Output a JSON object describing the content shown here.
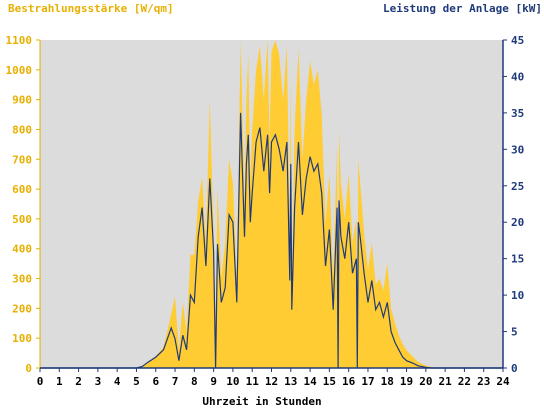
{
  "chart_data": {
    "type": "area",
    "left_title": "Bestrahlungsstärke [W/qm]",
    "right_title": "Leistung der Anlage [kW]",
    "xlabel": "Uhrzeit in Stunden",
    "xlim": [
      0,
      24
    ],
    "ylim_left": [
      0,
      1100
    ],
    "ylim_right": [
      0,
      45
    ],
    "x_ticks": [
      0,
      1,
      2,
      3,
      4,
      5,
      6,
      7,
      8,
      9,
      10,
      11,
      12,
      13,
      14,
      15,
      16,
      17,
      18,
      19,
      20,
      21,
      22,
      23,
      24
    ],
    "y_ticks_left": [
      0,
      100,
      200,
      300,
      400,
      500,
      600,
      700,
      800,
      900,
      1000,
      1100
    ],
    "y_ticks_right": [
      0,
      5,
      10,
      15,
      20,
      25,
      30,
      35,
      40,
      45
    ],
    "series": [
      {
        "name": "Bestrahlungsstärke [W/qm]",
        "axis": "left",
        "x": [
          0,
          5.0,
          5.3,
          5.6,
          6.0,
          6.4,
          6.8,
          7.0,
          7.2,
          7.4,
          7.6,
          7.8,
          8.0,
          8.2,
          8.4,
          8.6,
          8.8,
          9.0,
          9.1,
          9.2,
          9.4,
          9.6,
          9.8,
          10.0,
          10.2,
          10.4,
          10.6,
          10.7,
          10.8,
          10.9,
          11.0,
          11.2,
          11.4,
          11.6,
          11.8,
          11.9,
          12.0,
          12.2,
          12.4,
          12.6,
          12.8,
          12.95,
          13.0,
          13.05,
          13.2,
          13.4,
          13.6,
          13.8,
          14.0,
          14.2,
          14.4,
          14.6,
          14.8,
          15.0,
          15.2,
          15.4,
          15.45,
          15.5,
          15.6,
          15.8,
          16.0,
          16.2,
          16.4,
          16.45,
          16.5,
          16.6,
          16.8,
          17.0,
          17.2,
          17.4,
          17.6,
          17.8,
          18.0,
          18.2,
          18.4,
          18.6,
          18.8,
          19.0,
          19.3,
          19.6,
          20.0,
          20.3,
          20.6,
          24
        ],
        "values": [
          0,
          0,
          5,
          20,
          40,
          70,
          180,
          240,
          60,
          220,
          120,
          380,
          380,
          560,
          640,
          420,
          900,
          450,
          140,
          600,
          300,
          420,
          700,
          620,
          300,
          1100,
          560,
          900,
          1050,
          620,
          800,
          1000,
          1080,
          900,
          1100,
          760,
          1060,
          1100,
          1050,
          900,
          1080,
          450,
          1000,
          300,
          800,
          1070,
          700,
          900,
          1030,
          950,
          1000,
          850,
          480,
          650,
          300,
          750,
          20,
          800,
          620,
          500,
          650,
          420,
          500,
          20,
          700,
          620,
          450,
          330,
          420,
          280,
          300,
          260,
          350,
          200,
          150,
          110,
          80,
          60,
          40,
          20,
          8,
          3,
          0,
          0
        ]
      },
      {
        "name": "Leistung der Anlage [kW]",
        "axis": "right",
        "x": [
          0,
          5.0,
          5.3,
          5.6,
          6.0,
          6.4,
          6.8,
          7.0,
          7.2,
          7.4,
          7.6,
          7.8,
          8.0,
          8.2,
          8.4,
          8.6,
          8.8,
          9.0,
          9.1,
          9.2,
          9.4,
          9.6,
          9.8,
          10.0,
          10.2,
          10.4,
          10.6,
          10.7,
          10.8,
          10.9,
          11.0,
          11.2,
          11.4,
          11.6,
          11.8,
          11.9,
          12.0,
          12.2,
          12.4,
          12.6,
          12.8,
          12.95,
          13.0,
          13.05,
          13.2,
          13.4,
          13.6,
          13.8,
          14.0,
          14.2,
          14.4,
          14.6,
          14.8,
          15.0,
          15.2,
          15.4,
          15.45,
          15.5,
          15.6,
          15.8,
          16.0,
          16.2,
          16.4,
          16.45,
          16.5,
          16.6,
          16.8,
          17.0,
          17.2,
          17.4,
          17.6,
          17.8,
          18.0,
          18.2,
          18.4,
          18.6,
          18.8,
          19.0,
          19.3,
          19.6,
          20.0,
          20.3,
          20.6,
          24
        ],
        "values": [
          0,
          0,
          0.2,
          0.8,
          1.5,
          2.5,
          5.5,
          4.0,
          1.0,
          4.5,
          2.5,
          10.0,
          9.0,
          18.0,
          22.0,
          14.0,
          26.0,
          16.0,
          0,
          17.0,
          9.0,
          11.0,
          21.0,
          20.0,
          9.0,
          35.0,
          18.0,
          28.0,
          32.0,
          20.0,
          24.0,
          31.0,
          33.0,
          27.0,
          32.0,
          24.0,
          31.0,
          32.0,
          30.0,
          27.0,
          31.0,
          12.0,
          28.0,
          8.0,
          22.0,
          31.0,
          21.0,
          26.0,
          29.0,
          27.0,
          28.0,
          24.0,
          14.0,
          19.0,
          8.0,
          22.0,
          0,
          23.0,
          18.0,
          15.0,
          20.0,
          13.0,
          15.0,
          0,
          20.0,
          18.0,
          13.0,
          9.0,
          12.0,
          8.0,
          9.0,
          7.0,
          9.0,
          5.0,
          3.5,
          2.5,
          1.5,
          1.0,
          0.7,
          0.3,
          0.1,
          0,
          0,
          0
        ]
      }
    ],
    "colors": {
      "plot_background": "#dcdcdc",
      "irradiance_fill": "#ffcc33",
      "power_line": "#1f3a7a",
      "left_title_color": "#e8b000",
      "right_title_color": "#1f3a7a",
      "left_tick_color": "#e8b000",
      "right_tick_color": "#1f3a7a"
    }
  }
}
